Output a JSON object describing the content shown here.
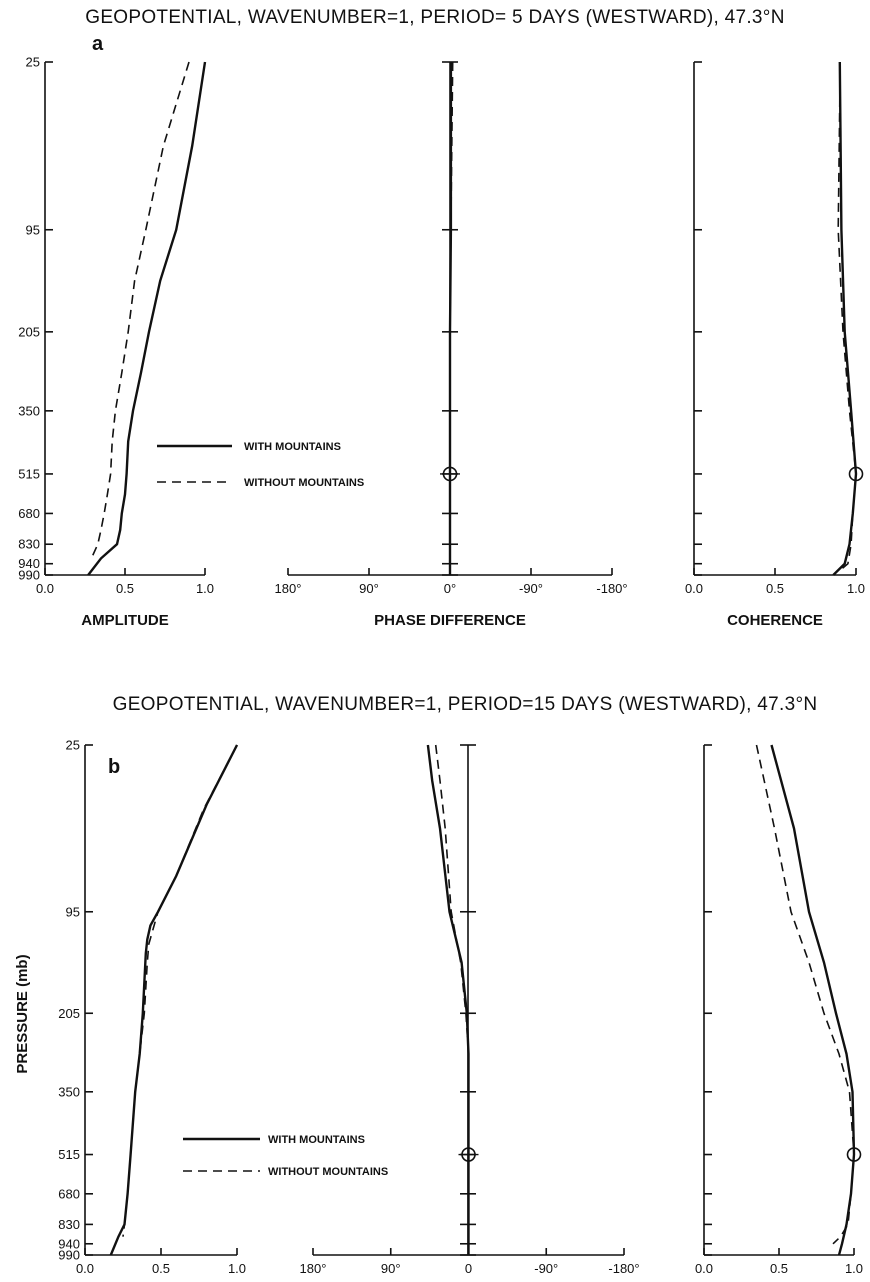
{
  "chart_data": [
    {
      "type": "line",
      "panel": "a",
      "title": "GEOPOTENTIAL, WAVENUMBER=1, PERIOD= 5 DAYS (WESTWARD), 47.3°N",
      "ylabel": "",
      "y_ticks": [
        "25",
        "95",
        "205",
        "350",
        "515",
        "680",
        "830",
        "940",
        "990"
      ],
      "legend": {
        "solid": "WITH MOUNTAINS",
        "dashed": "WITHOUT MOUNTAINS",
        "placement": "inside amplitude panel"
      },
      "subplots": [
        {
          "name": "amplitude",
          "xlabel": "AMPLITUDE",
          "xlim": [
            0,
            1
          ],
          "x_ticks": [
            "0.0",
            "0.5",
            "1.0"
          ],
          "series": [
            {
              "name": "WITH MOUNTAINS",
              "style": "solid",
              "points": [
                [
                  1.0,
                  25
                ],
                [
                  0.92,
                  60
                ],
                [
                  0.82,
                  95
                ],
                [
                  0.72,
                  150
                ],
                [
                  0.65,
                  205
                ],
                [
                  0.6,
                  280
                ],
                [
                  0.55,
                  350
                ],
                [
                  0.52,
                  430
                ],
                [
                  0.51,
                  515
                ],
                [
                  0.5,
                  600
                ],
                [
                  0.48,
                  680
                ],
                [
                  0.47,
                  760
                ],
                [
                  0.45,
                  830
                ],
                [
                  0.35,
                  910
                ],
                [
                  0.27,
                  990
                ]
              ]
            },
            {
              "name": "WITHOUT MOUNTAINS",
              "style": "dashed",
              "points": [
                [
                  0.9,
                  25
                ],
                [
                  0.74,
                  60
                ],
                [
                  0.63,
                  95
                ],
                [
                  0.56,
                  150
                ],
                [
                  0.52,
                  205
                ],
                [
                  0.48,
                  280
                ],
                [
                  0.44,
                  350
                ],
                [
                  0.42,
                  430
                ],
                [
                  0.41,
                  515
                ],
                [
                  0.39,
                  600
                ],
                [
                  0.37,
                  680
                ],
                [
                  0.35,
                  760
                ],
                [
                  0.33,
                  830
                ],
                [
                  0.29,
                  910
                ]
              ]
            }
          ]
        },
        {
          "name": "phase",
          "xlabel": "PHASE DIFFERENCE",
          "xlim": [
            180,
            -180
          ],
          "x_ticks": [
            "180°",
            "90°",
            "0°",
            "-90°",
            "-180°"
          ],
          "marker": {
            "x": 0,
            "y": 515,
            "shape": "circled cross"
          },
          "series": [
            {
              "name": "WITH MOUNTAINS",
              "style": "solid",
              "points": [
                [
                  -1,
                  25
                ],
                [
                  -1,
                  95
                ],
                [
                  0,
                  205
                ],
                [
                  0,
                  350
                ],
                [
                  0,
                  515
                ],
                [
                  0,
                  680
                ],
                [
                  0,
                  830
                ],
                [
                  0,
                  990
                ]
              ]
            },
            {
              "name": "WITHOUT MOUNTAINS",
              "style": "dashed",
              "points": [
                [
                  -3,
                  25
                ],
                [
                  -2,
                  60
                ],
                [
                  -1,
                  95
                ],
                [
                  0,
                  205
                ]
              ]
            }
          ]
        },
        {
          "name": "coherence",
          "xlabel": "COHERENCE",
          "xlim": [
            0,
            1
          ],
          "x_ticks": [
            "0.0",
            "0.5",
            "1.0"
          ],
          "marker": {
            "x": 1.0,
            "y": 515,
            "shape": "circle"
          },
          "series": [
            {
              "name": "WITH MOUNTAINS",
              "style": "solid",
              "points": [
                [
                  0.9,
                  25
                ],
                [
                  0.91,
                  95
                ],
                [
                  0.93,
                  205
                ],
                [
                  0.97,
                  350
                ],
                [
                  1.0,
                  515
                ],
                [
                  0.98,
                  680
                ],
                [
                  0.96,
                  830
                ],
                [
                  0.93,
                  940
                ],
                [
                  0.86,
                  990
                ]
              ]
            },
            {
              "name": "WITHOUT MOUNTAINS",
              "style": "dashed",
              "points": [
                [
                  0.9,
                  40
                ],
                [
                  0.89,
                  95
                ],
                [
                  0.92,
                  205
                ],
                [
                  0.96,
                  350
                ],
                [
                  1.0,
                  515
                ],
                [
                  0.98,
                  680
                ],
                [
                  0.97,
                  830
                ],
                [
                  0.95,
                  940
                ],
                [
                  0.9,
                  970
                ]
              ]
            }
          ]
        }
      ]
    },
    {
      "type": "line",
      "panel": "b",
      "title": "GEOPOTENTIAL, WAVENUMBER=1, PERIOD=15 DAYS (WESTWARD), 47.3°N",
      "ylabel": "PRESSURE (mb)",
      "y_ticks": [
        "25",
        "95",
        "205",
        "350",
        "515",
        "680",
        "830",
        "940",
        "990"
      ],
      "legend": {
        "solid": "WITH MOUNTAINS",
        "dashed": "WITHOUT MOUNTAINS",
        "placement": "inside amplitude panel"
      },
      "subplots": [
        {
          "name": "amplitude",
          "xlabel": "AMPLITUDE",
          "xlim": [
            0,
            1
          ],
          "x_ticks": [
            "0.0",
            "0.5",
            "1.0"
          ],
          "series": [
            {
              "name": "WITH MOUNTAINS",
              "style": "solid",
              "points": [
                [
                  1.0,
                  25
                ],
                [
                  0.8,
                  50
                ],
                [
                  0.6,
                  80
                ],
                [
                  0.48,
                  95
                ],
                [
                  0.43,
                  110
                ],
                [
                  0.41,
                  125
                ],
                [
                  0.4,
                  140
                ],
                [
                  0.38,
                  205
                ],
                [
                  0.36,
                  280
                ],
                [
                  0.33,
                  350
                ],
                [
                  0.3,
                  515
                ],
                [
                  0.28,
                  680
                ],
                [
                  0.26,
                  830
                ],
                [
                  0.22,
                  900
                ],
                [
                  0.17,
                  990
                ]
              ]
            },
            {
              "name": "WITHOUT MOUNTAINS",
              "style": "dashed",
              "points": [
                [
                  1.0,
                  25
                ],
                [
                  0.78,
                  52
                ],
                [
                  0.6,
                  80
                ],
                [
                  0.48,
                  95
                ],
                [
                  0.42,
                  130
                ],
                [
                  0.41,
                  150
                ],
                [
                  0.39,
                  205
                ],
                [
                  0.36,
                  280
                ],
                [
                  0.33,
                  350
                ],
                [
                  0.3,
                  515
                ],
                [
                  0.28,
                  680
                ],
                [
                  0.26,
                  830
                ],
                [
                  0.25,
                  900
                ]
              ]
            }
          ]
        },
        {
          "name": "phase",
          "xlabel": "PHASE DIFFERENCE",
          "xlim": [
            180,
            -180
          ],
          "x_ticks": [
            "180°",
            "90°",
            "0",
            "-90°",
            "-180°"
          ],
          "marker": {
            "x": 0,
            "y": 515,
            "shape": "circled cross"
          },
          "series": [
            {
              "name": "WITH MOUNTAINS",
              "style": "solid",
              "points": [
                [
                  47,
                  25
                ],
                [
                  42,
                  40
                ],
                [
                  33,
                  60
                ],
                [
                  22,
                  95
                ],
                [
                  8,
                  150
                ],
                [
                  2,
                  205
                ],
                [
                  0,
                  280
                ],
                [
                  0,
                  350
                ],
                [
                  0,
                  515
                ],
                [
                  0,
                  680
                ],
                [
                  0,
                  990
                ]
              ]
            },
            {
              "name": "WITHOUT MOUNTAINS",
              "style": "dashed",
              "points": [
                [
                  38,
                  25
                ],
                [
                  33,
                  40
                ],
                [
                  27,
                  60
                ],
                [
                  20,
                  95
                ],
                [
                  9,
                  150
                ],
                [
                  3,
                  205
                ],
                [
                  0,
                  280
                ],
                [
                  0,
                  350
                ]
              ]
            }
          ]
        },
        {
          "name": "coherence",
          "xlabel": "COHERENCE",
          "xlim": [
            0,
            1
          ],
          "x_ticks": [
            "0.0",
            "0.5",
            "1.0"
          ],
          "marker": {
            "x": 1.0,
            "y": 515,
            "shape": "circle"
          },
          "series": [
            {
              "name": "WITH MOUNTAINS",
              "style": "solid",
              "points": [
                [
                  0.45,
                  25
                ],
                [
                  0.6,
                  60
                ],
                [
                  0.7,
                  95
                ],
                [
                  0.8,
                  150
                ],
                [
                  0.88,
                  205
                ],
                [
                  0.95,
                  280
                ],
                [
                  0.99,
                  350
                ],
                [
                  1.0,
                  515
                ],
                [
                  0.98,
                  680
                ],
                [
                  0.95,
                  830
                ],
                [
                  0.92,
                  940
                ],
                [
                  0.9,
                  990
                ]
              ]
            },
            {
              "name": "WITHOUT MOUNTAINS",
              "style": "dashed",
              "points": [
                [
                  0.35,
                  25
                ],
                [
                  0.47,
                  60
                ],
                [
                  0.58,
                  95
                ],
                [
                  0.7,
                  150
                ],
                [
                  0.8,
                  205
                ],
                [
                  0.9,
                  280
                ],
                [
                  0.97,
                  350
                ],
                [
                  1.0,
                  515
                ],
                [
                  0.98,
                  680
                ],
                [
                  0.96,
                  830
                ],
                [
                  0.91,
                  900
                ],
                [
                  0.86,
                  940
                ]
              ]
            }
          ]
        }
      ]
    }
  ]
}
